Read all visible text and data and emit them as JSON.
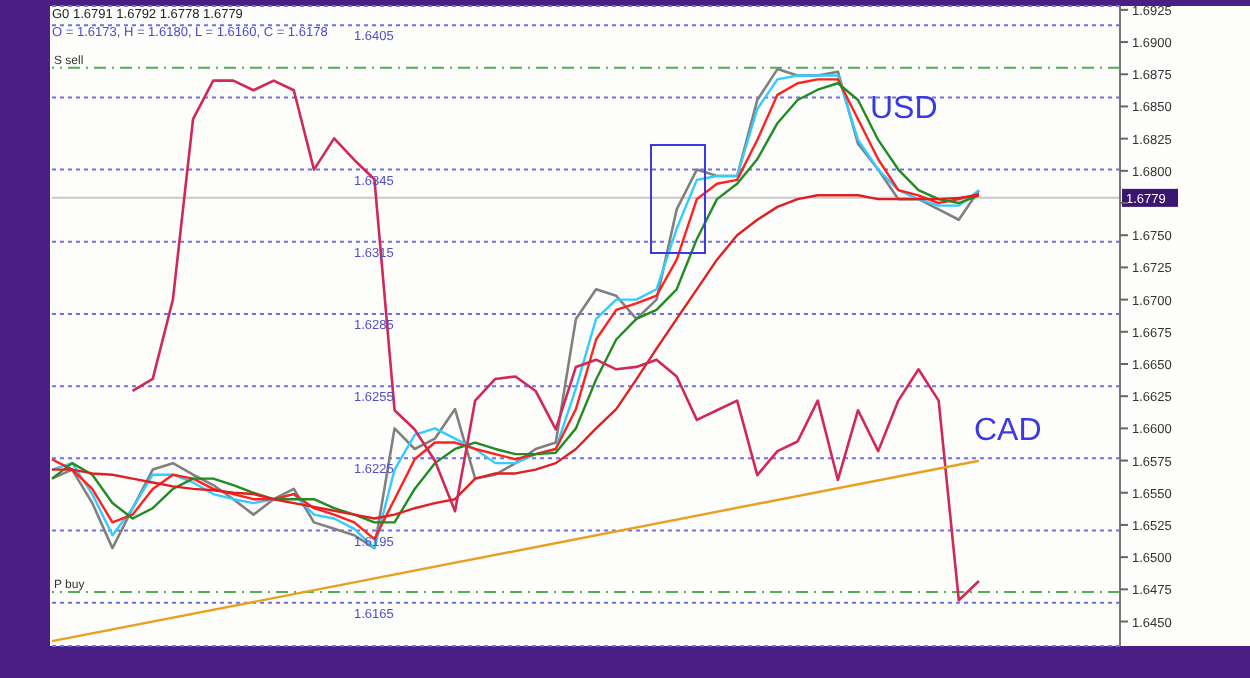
{
  "chart_data": {
    "type": "line",
    "title": "G0 1.6791 1.6792 1.6778 1.6779",
    "subtitle": "O = 1.6173, H = 1.6180, L = 1.6160, C = 1.6178",
    "categories": [
      null,
      null,
      null,
      null,
      null,
      null,
      null,
      null,
      null,
      null,
      null,
      null,
      null,
      null,
      null,
      null,
      null,
      null,
      null,
      null,
      null,
      null,
      null,
      null,
      null,
      null,
      null,
      null,
      null,
      null,
      null,
      null,
      null,
      null,
      null,
      null,
      null,
      null,
      null,
      null,
      null,
      null,
      null,
      null,
      null,
      null,
      null,
      null,
      null,
      null,
      null,
      null,
      null,
      null
    ],
    "series": [
      {
        "name": "USD",
        "color": "#808080",
        "axis": "y",
        "values": [
          1.6561,
          1.6568,
          1.6542,
          1.6507,
          1.6538,
          1.6568,
          1.6573,
          1.6564,
          1.6556,
          1.6545,
          1.6533,
          1.6545,
          1.6553,
          1.6527,
          1.6522,
          1.6517,
          1.6507,
          1.66,
          1.6584,
          1.6592,
          1.6615,
          1.6561,
          1.6564,
          1.6573,
          1.6584,
          1.6589,
          1.6685,
          1.6708,
          1.6703,
          1.6685,
          1.67,
          1.677,
          1.6801,
          1.6796,
          1.6796,
          1.6855,
          1.6879,
          1.6874,
          1.6874,
          1.6877,
          1.6821,
          1.6801,
          1.6778,
          1.6778,
          1.677,
          1.6762,
          1.6785,
          null,
          null,
          null,
          null,
          null,
          null,
          null
        ]
      },
      {
        "color": "#33ccff",
        "axis": "y",
        "values": [
          1.6568,
          1.6573,
          1.6549,
          1.6517,
          1.6538,
          1.6564,
          1.6564,
          1.6558,
          1.6549,
          1.6545,
          1.6542,
          1.6545,
          1.6549,
          1.6533,
          1.653,
          1.6522,
          1.6507,
          1.6568,
          1.6595,
          1.66,
          1.6592,
          1.6584,
          1.6573,
          1.6573,
          1.658,
          1.6584,
          1.6631,
          1.6685,
          1.67,
          1.67,
          1.6708,
          1.6755,
          1.6793,
          1.6796,
          1.6796,
          1.6848,
          1.6871,
          1.6874,
          1.6874,
          1.6874,
          1.6824,
          1.6801,
          1.6785,
          1.6778,
          1.6773,
          1.6773,
          1.6785,
          null,
          null,
          null,
          null,
          null,
          null,
          null
        ]
      },
      {
        "color": "#ff2020",
        "axis": "y",
        "values": [
          1.6576,
          1.6568,
          1.6553,
          1.6527,
          1.6533,
          1.6553,
          1.6564,
          1.6561,
          1.6553,
          1.6549,
          1.6545,
          1.6545,
          1.6549,
          1.6538,
          1.6533,
          1.6527,
          1.6514,
          1.6545,
          1.6576,
          1.6589,
          1.6589,
          1.6584,
          1.658,
          1.6576,
          1.658,
          1.6584,
          1.6615,
          1.6669,
          1.6692,
          1.6697,
          1.6703,
          1.6731,
          1.6778,
          1.679,
          1.6793,
          1.6824,
          1.6859,
          1.6868,
          1.6871,
          1.6871,
          1.684,
          1.6809,
          1.6785,
          1.6781,
          1.6775,
          1.6778,
          1.6782,
          null,
          null,
          null,
          null,
          null,
          null,
          null
        ]
      },
      {
        "color": "#228b22",
        "axis": "y",
        "values": [
          1.6561,
          1.6573,
          1.6564,
          1.6542,
          1.653,
          1.6538,
          1.6553,
          1.6561,
          1.6561,
          1.6556,
          1.655,
          1.6545,
          1.6545,
          1.6545,
          1.6538,
          1.6533,
          1.6527,
          1.6527,
          1.6553,
          1.6573,
          1.6584,
          1.6589,
          1.6584,
          1.658,
          1.658,
          1.6581,
          1.66,
          1.6638,
          1.6669,
          1.6685,
          1.6692,
          1.6708,
          1.6747,
          1.6778,
          1.679,
          1.6809,
          1.6837,
          1.6855,
          1.6863,
          1.6868,
          1.6855,
          1.6824,
          1.6801,
          1.6785,
          1.6778,
          1.6775,
          1.6781,
          null,
          null,
          null,
          null,
          null,
          null,
          null
        ]
      },
      {
        "color": "#e02020",
        "axis": "y",
        "values": [
          1.6568,
          1.6568,
          1.6565,
          1.6564,
          1.6561,
          1.6558,
          1.6555,
          1.6553,
          1.6552,
          1.655,
          1.6549,
          1.6545,
          1.6542,
          1.6539,
          1.6536,
          1.6533,
          1.653,
          1.6533,
          1.6538,
          1.6542,
          1.6545,
          1.6561,
          1.6565,
          1.6565,
          1.6568,
          1.6573,
          1.6584,
          1.66,
          1.6615,
          1.6638,
          1.6662,
          1.6685,
          1.6708,
          1.6731,
          1.675,
          1.6762,
          1.6772,
          1.6778,
          1.6781,
          1.6781,
          1.6781,
          1.6778,
          1.6778,
          1.6778,
          1.6778,
          1.6779,
          1.6781,
          null,
          null,
          null,
          null,
          null,
          null,
          null
        ]
      },
      {
        "name": "CAD",
        "color": "#d02858",
        "axis": "y2",
        "values": [
          null,
          null,
          null,
          null,
          1.6253,
          1.6258,
          1.6291,
          1.6366,
          1.6382,
          1.6382,
          1.6378,
          1.6382,
          1.6378,
          1.6345,
          1.6358,
          1.6349,
          1.6341,
          1.6245,
          1.6237,
          1.6224,
          1.6203,
          1.6249,
          1.6258,
          1.6259,
          1.6253,
          1.6237,
          1.6263,
          1.6266,
          1.6262,
          1.6263,
          1.6266,
          1.6259,
          1.6241,
          1.6245,
          1.6249,
          1.6218,
          1.6228,
          1.6232,
          1.6249,
          1.6216,
          1.6245,
          1.6228,
          1.6249,
          1.6262,
          1.6249,
          1.6166,
          1.6174,
          null,
          null,
          null,
          null,
          null,
          null,
          null
        ]
      },
      {
        "color": "#e8a020",
        "axis": "y2",
        "values": [
          1.6149,
          null,
          null,
          null,
          null,
          null,
          null,
          null,
          null,
          null,
          null,
          null,
          null,
          null,
          null,
          null,
          null,
          null,
          null,
          null,
          null,
          null,
          null,
          null,
          null,
          null,
          null,
          null,
          null,
          null,
          null,
          null,
          null,
          null,
          null,
          null,
          null,
          null,
          null,
          null,
          null,
          null,
          null,
          null,
          null,
          null,
          1.6224,
          null,
          null,
          null,
          null,
          null,
          null,
          null
        ]
      }
    ],
    "ylim": [
      1.6431,
      1.6928
    ],
    "yticks": [
      {
        "value": 1.645,
        "label": "1.6450"
      },
      1.6475,
      {
        "value": 1.65,
        "label": "1.6500"
      },
      1.6525,
      {
        "value": 1.655,
        "label": "1.6550"
      },
      1.6575,
      {
        "value": 1.66,
        "label": "1.6600"
      },
      1.6625,
      {
        "value": 1.665,
        "label": "1.6650"
      },
      1.6675,
      {
        "value": 1.67,
        "label": "1.6700"
      },
      1.6725,
      {
        "value": 1.675,
        "label": "1.6750"
      },
      {
        "value": 1.6775,
        "label": null
      },
      {
        "value": 1.68,
        "label": "1.6800"
      },
      1.6825,
      {
        "value": 1.685,
        "label": "1.6850"
      },
      1.6875,
      {
        "value": 1.69,
        "label": "1.6900"
      },
      1.6925
    ],
    "y2lim": [
      1.6147,
      1.6413
    ],
    "y2ticks": [
      1.6165,
      1.6195,
      1.6225,
      1.6255,
      1.6285,
      1.6315,
      1.6345,
      {
        "value": 1.6375,
        "label": null
      },
      1.6405
    ],
    "grid": true,
    "marker": "none",
    "line_style": "solid",
    "tick_labels": "y",
    "ref_lines": [
      {
        "axis": "y",
        "value": 1.6779,
        "label": "1.6779",
        "color": "#c8c8c8",
        "line_style": "solid"
      },
      {
        "axis": "y",
        "value": 1.688,
        "label": "S sell",
        "color": "#55aa55",
        "line_style": "dashed"
      },
      {
        "axis": "y",
        "value": 1.6473,
        "label": "P buy",
        "color": "#55aa55",
        "line_style": "dashed"
      }
    ]
  }
}
